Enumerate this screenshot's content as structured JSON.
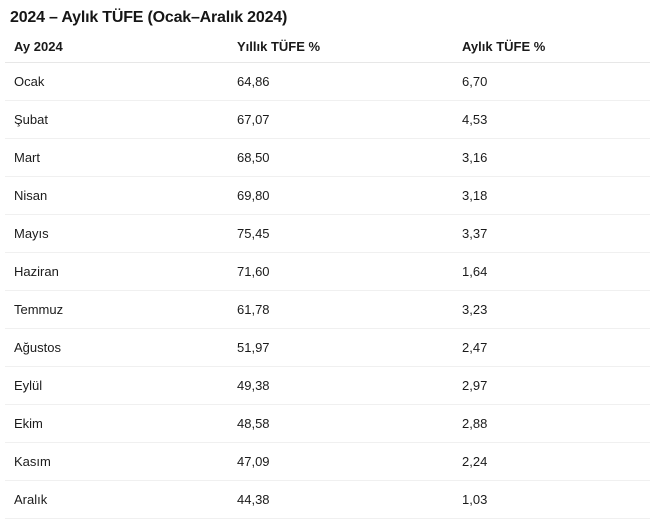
{
  "page": {
    "title": "2024 – Aylık TÜFE (Ocak–Aralık 2024)"
  },
  "table": {
    "columns": [
      "Ay 2024",
      "Yıllık TÜFE %",
      "Aylık TÜFE %"
    ],
    "rows": [
      {
        "month": "Ocak",
        "yearly": "64,86",
        "monthly": "6,70"
      },
      {
        "month": "Şubat",
        "yearly": "67,07",
        "monthly": "4,53"
      },
      {
        "month": "Mart",
        "yearly": "68,50",
        "monthly": "3,16"
      },
      {
        "month": "Nisan",
        "yearly": "69,80",
        "monthly": "3,18"
      },
      {
        "month": "Mayıs",
        "yearly": "75,45",
        "monthly": "3,37"
      },
      {
        "month": "Haziran",
        "yearly": "71,60",
        "monthly": "1,64"
      },
      {
        "month": "Temmuz",
        "yearly": "61,78",
        "monthly": "3,23"
      },
      {
        "month": "Ağustos",
        "yearly": "51,97",
        "monthly": "2,47"
      },
      {
        "month": "Eylül",
        "yearly": "49,38",
        "monthly": "2,97"
      },
      {
        "month": "Ekim",
        "yearly": "48,58",
        "monthly": "2,88"
      },
      {
        "month": "Kasım",
        "yearly": "47,09",
        "monthly": "2,24"
      },
      {
        "month": "Aralık",
        "yearly": "44,38",
        "monthly": "1,03"
      }
    ]
  },
  "colors": {
    "background": "#ffffff",
    "text": "#1b1b1b",
    "row_separator": "#f0f0f0",
    "header_separator": "#e7e7e7"
  }
}
